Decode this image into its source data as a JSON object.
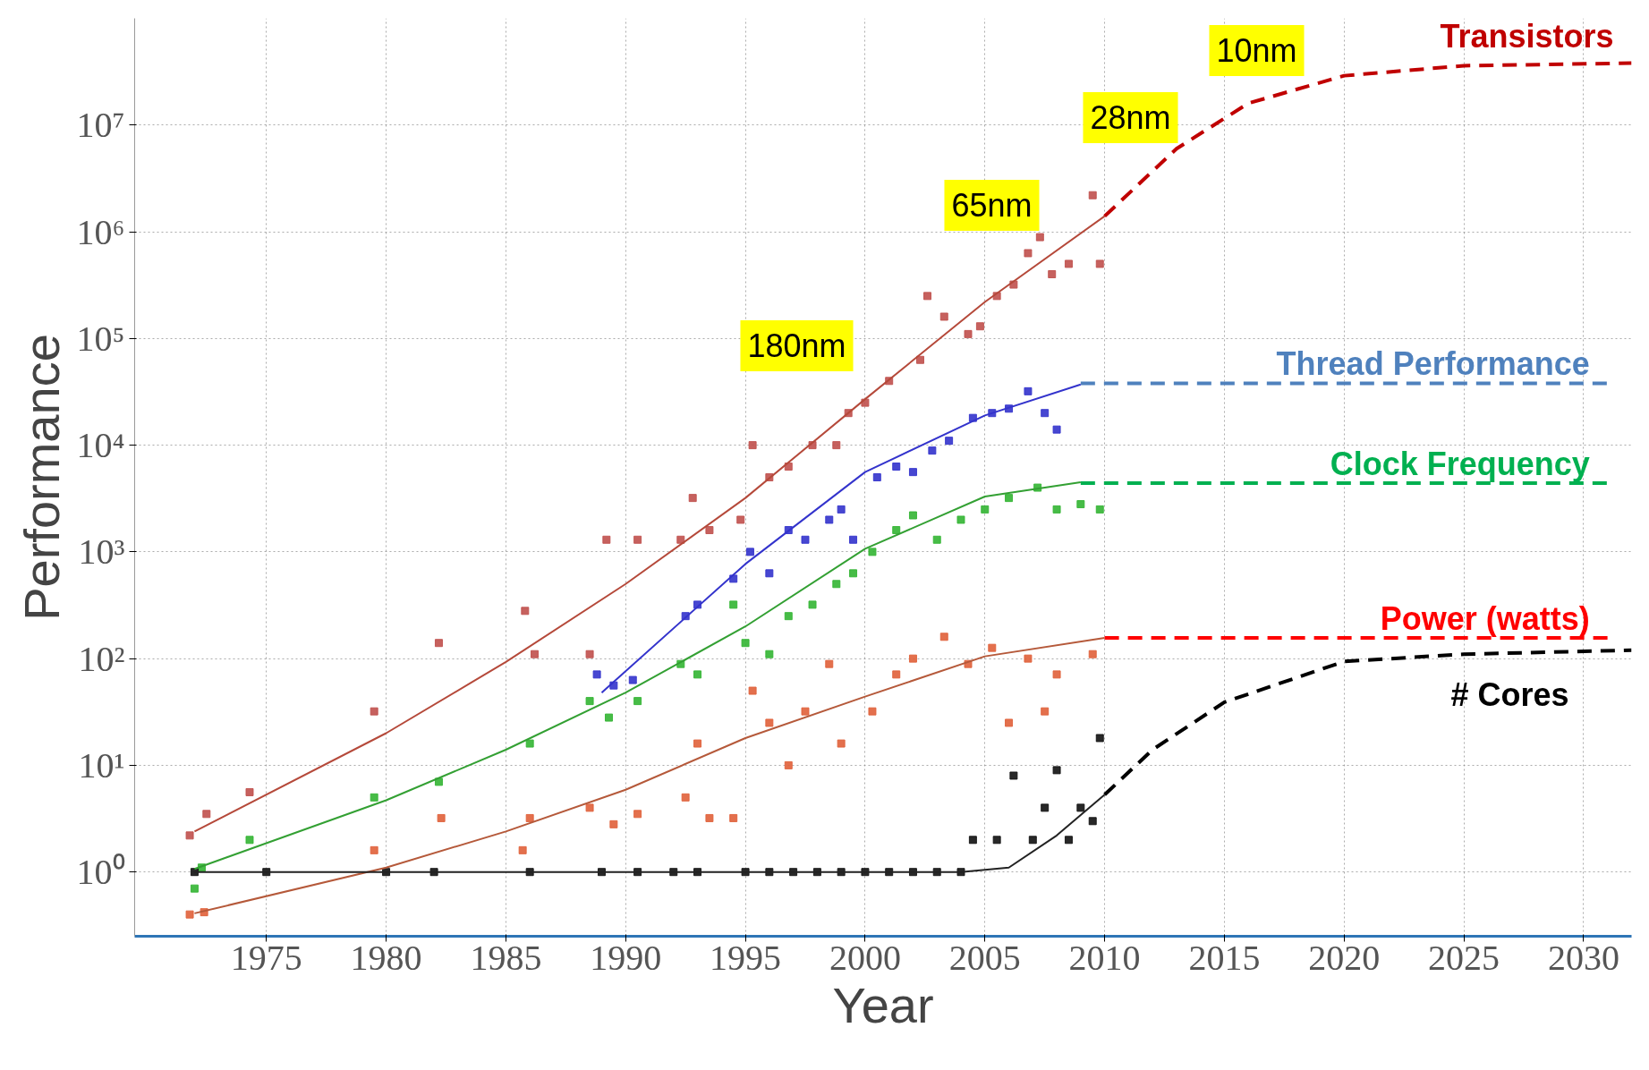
{
  "chart_data": {
    "type": "scatter",
    "xlabel": "Year",
    "ylabel": "Performance",
    "log": "y",
    "grid": true,
    "xlim": [
      1969.5,
      2032
    ],
    "xticks": [
      1975,
      1980,
      1985,
      1990,
      1995,
      2000,
      2005,
      2010,
      2015,
      2020,
      2025,
      2030
    ],
    "ylim": [
      0.25,
      100000000
    ],
    "yticks": [
      {
        "value": 1,
        "label": "10⁰"
      },
      {
        "value": 10,
        "label": "10¹"
      },
      {
        "value": 100,
        "label": "10²"
      },
      {
        "value": 1000,
        "label": "10³"
      },
      {
        "value": 10000,
        "label": "10⁴"
      },
      {
        "value": 100000,
        "label": "10⁵"
      },
      {
        "value": 1000000,
        "label": "10⁶"
      },
      {
        "value": 10000000,
        "label": "10⁷"
      }
    ],
    "series": [
      {
        "marker": "square",
        "color": "#c0504d",
        "x": [
          1971.8,
          1972.5,
          1974.3,
          1979.5,
          1982.2,
          1985.8,
          1986.2,
          1988.5,
          1989.2,
          1990.5,
          1992.3,
          1992.8,
          1993.5,
          1994.8,
          1995.3,
          1996.0,
          1996.8,
          1997.8,
          1998.8,
          1999.3,
          2000.0,
          2001.0,
          2002.3,
          2002.6,
          2003.3,
          2004.3,
          2004.8,
          2005.5,
          2006.2,
          2006.8,
          2007.3,
          2007.8,
          2008.5,
          2009.5,
          2009.8
        ],
        "values": [
          2.2,
          3.5,
          5.6,
          32,
          140,
          280,
          110,
          110,
          1300,
          1300,
          1300,
          3200,
          1600,
          2000,
          10000,
          5000,
          6300,
          10000,
          10000,
          20000,
          25000,
          40000,
          63000,
          250000,
          160000,
          110000,
          130000,
          250000,
          320000,
          630000,
          890000,
          400000,
          500000,
          2200000,
          500000
        ]
      },
      {
        "marker": "square",
        "color": "#3333cc",
        "x": [
          1988.8,
          1989.5,
          1990.3,
          1992.5,
          1993,
          1994.5,
          1995.2,
          1996,
          1996.8,
          1997.5,
          1998.5,
          1999,
          1999.5,
          2000.5,
          2001.3,
          2002,
          2002.8,
          2003.5,
          2004.5,
          2005.3,
          2006,
          2006.8,
          2007.5,
          2008
        ],
        "values": [
          71,
          56,
          63,
          250,
          320,
          560,
          1000,
          630,
          1600,
          1300,
          2000,
          2500,
          1300,
          5000,
          6300,
          5600,
          8900,
          11000,
          18000,
          20000,
          22000,
          32000,
          20000,
          14000
        ]
      },
      {
        "marker": "square",
        "color": "#33b533",
        "x": [
          1972,
          1972.3,
          1974.3,
          1979.5,
          1982.2,
          1986,
          1988.5,
          1989.3,
          1990.5,
          1992.3,
          1993,
          1994.5,
          1995,
          1996,
          1996.8,
          1997.8,
          1998.8,
          1999.5,
          2000.3,
          2001.3,
          2002,
          2003,
          2004,
          2005,
          2006,
          2007.2,
          2008,
          2009,
          2009.8
        ],
        "values": [
          0.7,
          1.1,
          2,
          5,
          7,
          16,
          40,
          28,
          40,
          89,
          71,
          320,
          140,
          110,
          250,
          320,
          500,
          630,
          1000,
          1600,
          2200,
          1300,
          2000,
          2500,
          3200,
          4000,
          2500,
          2800,
          2500
        ]
      },
      {
        "marker": "square",
        "color": "#e0603a",
        "x": [
          1971.8,
          1972.4,
          1979.5,
          1982.3,
          1985.7,
          1986,
          1988.5,
          1989.5,
          1990.5,
          1992.5,
          1993,
          1993.5,
          1994.5,
          1995.3,
          1996,
          1996.8,
          1997.5,
          1998.5,
          1999,
          2000.3,
          2001.3,
          2002,
          2003.3,
          2004.3,
          2005.3,
          2006,
          2006.8,
          2007.5,
          2008,
          2009.5
        ],
        "values": [
          0.4,
          0.42,
          1.6,
          3.2,
          1.6,
          3.2,
          4,
          2.8,
          3.5,
          5,
          16,
          3.2,
          3.2,
          50,
          25,
          10,
          32,
          89,
          16,
          32,
          71,
          100,
          160,
          89,
          126,
          25,
          100,
          32,
          71,
          110
        ]
      },
      {
        "marker": "square",
        "color": "#111111",
        "x": [
          1972,
          1975,
          1980,
          1982,
          1986,
          1989,
          1990.5,
          1992,
          1993,
          1995,
          1996,
          1997,
          1998,
          1999,
          2000,
          2001,
          2002,
          2003,
          2004,
          2004.5,
          2005.5,
          2006.2,
          2007,
          2007.5,
          2008,
          2008.5,
          2009,
          2009.5,
          2009.8
        ],
        "values": [
          1,
          1,
          1,
          1,
          1,
          1,
          1,
          1,
          1,
          1,
          1,
          1,
          1,
          1,
          1,
          1,
          1,
          1,
          1,
          2,
          2,
          8,
          2,
          4,
          9,
          2,
          4,
          3,
          18
        ]
      },
      {
        "type": "line",
        "line_style": "solid",
        "color": "#b5493a",
        "x": [
          1972,
          1980,
          1985,
          1990,
          1995,
          2000,
          2005,
          2010
        ],
        "values": [
          2.4,
          20,
          93,
          500,
          3200,
          27000,
          220000,
          1400000
        ]
      },
      {
        "type": "line",
        "name": "Transistors",
        "line_style": "dashed",
        "color": "#c00000",
        "x": [
          2010,
          2013,
          2016,
          2020,
          2025,
          2032
        ],
        "values": [
          1400000,
          6000000,
          16000000,
          29000000,
          36000000,
          38000000
        ]
      },
      {
        "type": "line",
        "line_style": "solid",
        "color": "#3333cc",
        "x": [
          1989,
          1995,
          2000,
          2005,
          2009
        ],
        "values": [
          48,
          770,
          5600,
          19000,
          37000
        ]
      },
      {
        "type": "line",
        "name": "Thread Performance",
        "line_style": "dashed",
        "color": "#4f81bd",
        "x": [
          2009,
          2031
        ],
        "values": [
          38000,
          38000
        ]
      },
      {
        "type": "line",
        "line_style": "solid",
        "color": "#33a033",
        "x": [
          1972,
          1980,
          1985,
          1990,
          1995,
          2000,
          2005,
          2009
        ],
        "values": [
          1.07,
          4.7,
          14,
          48,
          200,
          1070,
          3300,
          4500
        ]
      },
      {
        "type": "line",
        "name": "Clock Frequency",
        "line_style": "dashed",
        "color": "#00b050",
        "x": [
          2009,
          2031
        ],
        "values": [
          4400,
          4400
        ]
      },
      {
        "type": "line",
        "line_style": "solid",
        "color": "#b5593a",
        "x": [
          1972,
          1980,
          1985,
          1990,
          1995,
          2000,
          2005,
          2010
        ],
        "values": [
          0.41,
          1.1,
          2.4,
          5.9,
          18,
          44,
          105,
          156
        ]
      },
      {
        "type": "line",
        "name": "Power (watts)",
        "line_style": "dashed",
        "color": "#ff0000",
        "x": [
          2010,
          2031
        ],
        "values": [
          156,
          156
        ]
      },
      {
        "type": "line",
        "line_style": "solid",
        "color": "#222222",
        "x": [
          1972,
          2004,
          2006,
          2008,
          2010
        ],
        "values": [
          1,
          1,
          1.1,
          2.2,
          5.3
        ]
      },
      {
        "type": "line",
        "name": "# Cores",
        "line_style": "dashed",
        "color": "#000000",
        "x": [
          2010,
          2012,
          2015,
          2020,
          2025,
          2032
        ],
        "values": [
          5.3,
          14,
          39,
          94,
          110,
          120
        ]
      }
    ],
    "annotations": [
      "180nm",
      "65nm",
      "28nm",
      "10nm"
    ]
  }
}
